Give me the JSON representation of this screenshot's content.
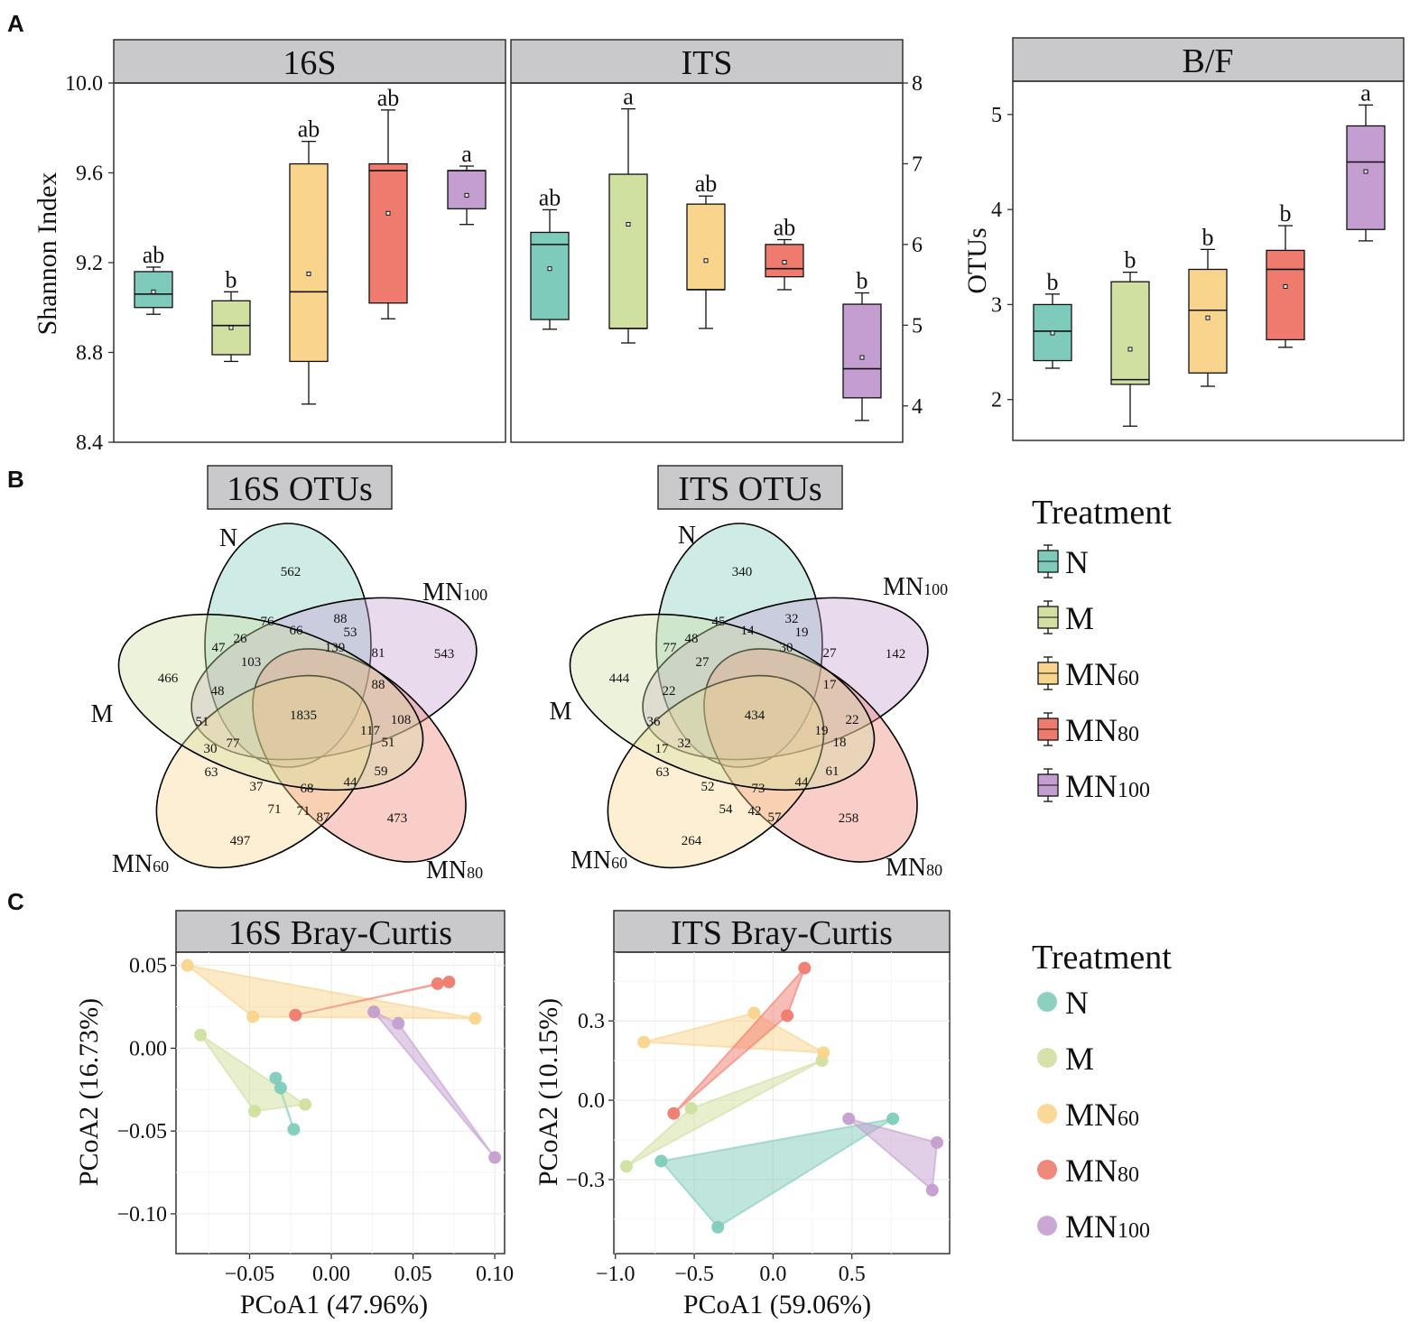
{
  "panel_letters": [
    "A",
    "B",
    "C"
  ],
  "colors": {
    "N": "#7fcbbb",
    "M": "#cfe0a0",
    "MN60": "#f9d48c",
    "MN80": "#ef7b6e",
    "MN100": "#c49ed0"
  },
  "groups": [
    {
      "key": "N",
      "base": "N",
      "sub": ""
    },
    {
      "key": "M",
      "base": "M",
      "sub": ""
    },
    {
      "key": "MN60",
      "base": "MN",
      "sub": "60"
    },
    {
      "key": "MN80",
      "base": "MN",
      "sub": "80"
    },
    {
      "key": "MN100",
      "base": "MN",
      "sub": "100"
    }
  ],
  "chart_data": [
    {
      "type": "box",
      "id": "box16S",
      "title": "16S",
      "ylabel": "Shannon Index",
      "axis_side": "left",
      "ylim": [
        8.4,
        10.0
      ],
      "yticks": [
        8.4,
        8.8,
        9.2,
        9.6,
        10.0
      ],
      "ytick_labels": [
        "8.4",
        "8.8",
        "9.2",
        "9.6",
        "10.0"
      ],
      "boxes": [
        {
          "group": "N",
          "min": 8.97,
          "q1": 9.0,
          "median": 9.06,
          "q3": 9.16,
          "max": 9.18,
          "mean": 9.07,
          "sig": "ab"
        },
        {
          "group": "M",
          "min": 8.76,
          "q1": 8.79,
          "median": 8.92,
          "q3": 9.03,
          "max": 9.07,
          "mean": 8.91,
          "sig": "b"
        },
        {
          "group": "MN60",
          "min": 8.57,
          "q1": 8.76,
          "median": 9.07,
          "q3": 9.64,
          "max": 9.74,
          "mean": 9.15,
          "sig": "ab"
        },
        {
          "group": "MN80",
          "min": 8.95,
          "q1": 9.02,
          "median": 9.61,
          "q3": 9.64,
          "max": 9.88,
          "mean": 9.42,
          "sig": "ab"
        },
        {
          "group": "MN100",
          "min": 9.37,
          "q1": 9.44,
          "median": 9.61,
          "q3": 9.61,
          "max": 9.63,
          "mean": 9.5,
          "sig": "a"
        }
      ]
    },
    {
      "type": "box",
      "id": "boxITS",
      "title": "ITS",
      "ylabel": "",
      "axis_side": "right",
      "ylim": [
        3.55,
        8.0
      ],
      "yticks": [
        4,
        5,
        6,
        7,
        8
      ],
      "ytick_labels": [
        "4",
        "5",
        "6",
        "7",
        "8"
      ],
      "boxes": [
        {
          "group": "N",
          "min": 4.95,
          "q1": 5.07,
          "median": 6.0,
          "q3": 6.15,
          "max": 6.43,
          "mean": 5.7,
          "sig": "ab"
        },
        {
          "group": "M",
          "min": 4.78,
          "q1": 4.96,
          "median": 4.96,
          "q3": 6.87,
          "max": 7.68,
          "mean": 6.25,
          "sig": "a"
        },
        {
          "group": "MN60",
          "min": 4.96,
          "q1": 5.44,
          "median": 5.44,
          "q3": 6.5,
          "max": 6.6,
          "mean": 5.8,
          "sig": "ab"
        },
        {
          "group": "MN80",
          "min": 5.44,
          "q1": 5.6,
          "median": 5.7,
          "q3": 6.0,
          "max": 6.06,
          "mean": 5.78,
          "sig": "ab"
        },
        {
          "group": "MN100",
          "min": 3.82,
          "q1": 4.1,
          "median": 4.46,
          "q3": 5.26,
          "max": 5.4,
          "mean": 4.6,
          "sig": "b"
        }
      ]
    },
    {
      "type": "box",
      "id": "boxBF",
      "title": "B/F",
      "ylabel": "OTUs",
      "axis_side": "left",
      "ylim": [
        1.57,
        5.35
      ],
      "yticks": [
        2,
        3,
        4,
        5
      ],
      "ytick_labels": [
        "2",
        "3",
        "4",
        "5"
      ],
      "boxes": [
        {
          "group": "N",
          "min": 2.33,
          "q1": 2.41,
          "median": 2.72,
          "q3": 3.0,
          "max": 3.11,
          "mean": 2.7,
          "sig": "b"
        },
        {
          "group": "M",
          "min": 1.72,
          "q1": 2.16,
          "median": 2.21,
          "q3": 3.24,
          "max": 3.34,
          "mean": 2.53,
          "sig": "b"
        },
        {
          "group": "MN60",
          "min": 2.14,
          "q1": 2.28,
          "median": 2.94,
          "q3": 3.37,
          "max": 3.58,
          "mean": 2.86,
          "sig": "b"
        },
        {
          "group": "MN80",
          "min": 2.55,
          "q1": 2.63,
          "median": 3.37,
          "q3": 3.57,
          "max": 3.83,
          "mean": 3.19,
          "sig": "b"
        },
        {
          "group": "MN100",
          "min": 3.67,
          "q1": 3.79,
          "median": 4.5,
          "q3": 4.88,
          "max": 5.1,
          "mean": 4.4,
          "sig": "a"
        }
      ]
    },
    {
      "type": "venn",
      "id": "venn16S",
      "title": "16S OTUs",
      "set_labels": [
        {
          "base": "N",
          "sub": ""
        },
        {
          "base": "MN",
          "sub": "100"
        },
        {
          "base": "MN",
          "sub": "80"
        },
        {
          "base": "MN",
          "sub": "60"
        },
        {
          "base": "M",
          "sub": ""
        }
      ],
      "region_values": [
        "562",
        "543",
        "473",
        "497",
        "466",
        "76",
        "66",
        "88",
        "53",
        "139",
        "81",
        "88",
        "47",
        "26",
        "103",
        "48",
        "51",
        "1835",
        "117",
        "108",
        "51",
        "30",
        "77",
        "63",
        "37",
        "68",
        "44",
        "59",
        "71",
        "71",
        "87"
      ]
    },
    {
      "type": "venn",
      "id": "vennITS",
      "title": "ITS OTUs",
      "set_labels": [
        {
          "base": "N",
          "sub": ""
        },
        {
          "base": "MN",
          "sub": "100"
        },
        {
          "base": "MN",
          "sub": "80"
        },
        {
          "base": "MN",
          "sub": "60"
        },
        {
          "base": "M",
          "sub": ""
        }
      ],
      "region_values": [
        "340",
        "142",
        "258",
        "264",
        "444",
        "45",
        "14",
        "32",
        "19",
        "30",
        "27",
        "17",
        "77",
        "48",
        "27",
        "22",
        "36",
        "434",
        "19",
        "22",
        "18",
        "17",
        "32",
        "63",
        "52",
        "73",
        "44",
        "61",
        "54",
        "42",
        "57"
      ]
    },
    {
      "type": "scatter",
      "id": "pcoa16S",
      "title": "16S Bray-Curtis",
      "xlabel": "PCoA1 (47.96%)",
      "ylabel": "PCoA2 (16.73%)",
      "xlim": [
        -0.095,
        0.106
      ],
      "ylim": [
        -0.124,
        0.058
      ],
      "xticks": [
        -0.05,
        0.0,
        0.05,
        0.1
      ],
      "xtick_labels": [
        "−0.05",
        "0.00",
        "0.05",
        "0.10"
      ],
      "yticks": [
        0.05,
        0.0,
        -0.05,
        -0.1
      ],
      "ytick_labels": [
        "0.05",
        "0.00",
        "−0.05",
        "−0.10"
      ],
      "series": [
        {
          "group": "N",
          "points": [
            [
              -0.034,
              -0.018
            ],
            [
              -0.031,
              -0.024
            ],
            [
              -0.023,
              -0.049
            ]
          ]
        },
        {
          "group": "M",
          "points": [
            [
              -0.08,
              0.008
            ],
            [
              -0.047,
              -0.038
            ],
            [
              -0.016,
              -0.034
            ]
          ]
        },
        {
          "group": "MN60",
          "points": [
            [
              -0.088,
              0.05
            ],
            [
              -0.048,
              0.019
            ],
            [
              0.088,
              0.018
            ]
          ]
        },
        {
          "group": "MN80",
          "points": [
            [
              -0.022,
              0.02
            ],
            [
              0.065,
              0.039
            ],
            [
              0.072,
              0.04
            ]
          ]
        },
        {
          "group": "MN100",
          "points": [
            [
              0.026,
              0.022
            ],
            [
              0.041,
              0.015
            ],
            [
              0.1,
              -0.066
            ]
          ]
        }
      ]
    },
    {
      "type": "scatter",
      "id": "pcoaITS",
      "title": "ITS Bray-Curtis",
      "xlabel": "PCoA1 (59.06%)",
      "ylabel": "PCoA2 (10.15%)",
      "xlim": [
        -1.01,
        1.12
      ],
      "ylim": [
        -0.58,
        0.56
      ],
      "xticks": [
        -1.0,
        -0.5,
        0.0,
        0.5
      ],
      "xtick_labels": [
        "−1.0",
        "−0.5",
        "0.0",
        "0.5"
      ],
      "yticks": [
        0.3,
        0.0,
        -0.3
      ],
      "ytick_labels": [
        "0.3",
        "0.0",
        "−0.3"
      ],
      "series": [
        {
          "group": "N",
          "points": [
            [
              -0.71,
              -0.23
            ],
            [
              -0.35,
              -0.48
            ],
            [
              0.76,
              -0.07
            ]
          ]
        },
        {
          "group": "M",
          "points": [
            [
              -0.93,
              -0.25
            ],
            [
              -0.52,
              -0.03
            ],
            [
              0.31,
              0.15
            ]
          ]
        },
        {
          "group": "MN60",
          "points": [
            [
              -0.82,
              0.22
            ],
            [
              -0.12,
              0.33
            ],
            [
              0.32,
              0.18
            ]
          ]
        },
        {
          "group": "MN80",
          "points": [
            [
              -0.63,
              -0.05
            ],
            [
              0.09,
              0.32
            ],
            [
              0.2,
              0.5
            ]
          ]
        },
        {
          "group": "MN100",
          "points": [
            [
              0.48,
              -0.07
            ],
            [
              1.04,
              -0.16
            ],
            [
              1.01,
              -0.34
            ]
          ]
        }
      ]
    }
  ],
  "legends": [
    {
      "id": "legendB",
      "title": "Treatment",
      "style": "box"
    },
    {
      "id": "legendC",
      "title": "Treatment",
      "style": "point"
    }
  ]
}
